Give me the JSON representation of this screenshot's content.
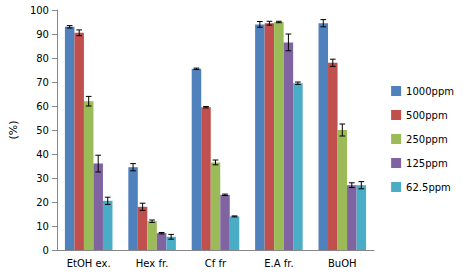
{
  "chart_data": {
    "type": "bar",
    "y_label": "(%)",
    "categories": [
      "EtOH ex.",
      "Hex fr.",
      "Cf fr",
      "E.A fr.",
      "BuOH"
    ],
    "series": [
      {
        "name": "1000ppm",
        "color": "#4F81BD",
        "values": [
          93,
          34.5,
          75.5,
          94,
          94.5
        ],
        "errors": [
          0.5,
          1.5,
          0.3,
          1.2,
          1.5
        ]
      },
      {
        "name": "500ppm",
        "color": "#C0504D",
        "values": [
          90.5,
          18,
          59.5,
          94.5,
          78
        ],
        "errors": [
          1.2,
          1.5,
          0.3,
          0.8,
          1.5
        ]
      },
      {
        "name": "250ppm",
        "color": "#9BBB59",
        "values": [
          62,
          12,
          36.5,
          95,
          50
        ],
        "errors": [
          2,
          0.5,
          1,
          0.3,
          2.5
        ]
      },
      {
        "name": "125ppm",
        "color": "#8064A2",
        "values": [
          36,
          7,
          23,
          86.5,
          27
        ],
        "errors": [
          3.5,
          0.3,
          0.3,
          3.5,
          1
        ]
      },
      {
        "name": "62.5ppm",
        "color": "#4BACC6",
        "values": [
          20.5,
          5.5,
          14,
          69.5,
          27
        ],
        "errors": [
          1.5,
          1,
          0.2,
          0.5,
          1.5
        ]
      }
    ],
    "ylim": [
      0,
      100
    ],
    "yticks": [
      0,
      10,
      20,
      30,
      40,
      50,
      60,
      70,
      80,
      90,
      100
    ],
    "grid": false,
    "legend": "right"
  }
}
